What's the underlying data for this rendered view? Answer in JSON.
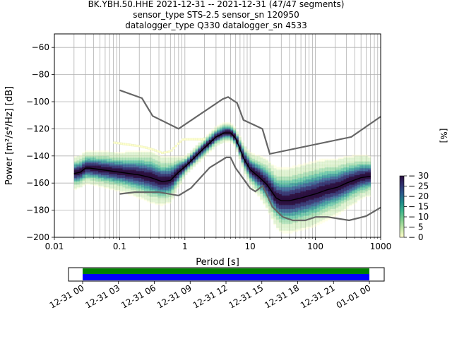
{
  "title_lines": [
    "BK.YBH.50.HHE   2021-12-31 -- 2021-12-31  (47/47 segments)",
    "sensor_type STS-2.5 sensor_sn 120950",
    "datalogger_type Q330 datalogger_sn 4533"
  ],
  "chart_data": {
    "type": "heatmap",
    "subtype": "probabilistic power spectral density",
    "x_scale": "log",
    "xlabel": "Period [s]",
    "ylabel": "Power [m²/s⁴/Hz] [dB]",
    "xlim": [
      0.01,
      1000
    ],
    "ylim": [
      -200,
      -50
    ],
    "x_ticks": [
      {
        "value": 0.01,
        "label": "0.01"
      },
      {
        "value": 0.1,
        "label": "0.1"
      },
      {
        "value": 1,
        "label": "1"
      },
      {
        "value": 10,
        "label": "10"
      },
      {
        "value": 100,
        "label": "100"
      },
      {
        "value": 1000,
        "label": "1000"
      }
    ],
    "y_ticks": [
      {
        "value": -60,
        "label": "−60"
      },
      {
        "value": -80,
        "label": "−80"
      },
      {
        "value": -100,
        "label": "−100"
      },
      {
        "value": -120,
        "label": "−120"
      },
      {
        "value": -140,
        "label": "−140"
      },
      {
        "value": -160,
        "label": "−160"
      },
      {
        "value": -180,
        "label": "−180"
      },
      {
        "value": -200,
        "label": "−200"
      }
    ],
    "grid": true,
    "noise_models": {
      "color": "#666666",
      "high": [
        [
          0.1,
          -91.5
        ],
        [
          0.22,
          -97.4
        ],
        [
          0.32,
          -110.5
        ],
        [
          0.8,
          -120
        ],
        [
          3.8,
          -98
        ],
        [
          4.6,
          -96.5
        ],
        [
          6.3,
          -101
        ],
        [
          7.9,
          -113.5
        ],
        [
          15.4,
          -120
        ],
        [
          20,
          -138.5
        ],
        [
          354.8,
          -126
        ],
        [
          1000,
          -111
        ]
      ],
      "low": [
        [
          0.1,
          -168
        ],
        [
          0.17,
          -166.7
        ],
        [
          0.4,
          -166.7
        ],
        [
          0.8,
          -169.2
        ],
        [
          1.24,
          -163.7
        ],
        [
          2.4,
          -148.6
        ],
        [
          4.3,
          -141.1
        ],
        [
          5,
          -141.1
        ],
        [
          6,
          -149
        ],
        [
          10,
          -163.8
        ],
        [
          12,
          -166.2
        ],
        [
          15.6,
          -162.1
        ],
        [
          21.9,
          -177.5
        ],
        [
          31.6,
          -185
        ],
        [
          45,
          -187.5
        ],
        [
          70,
          -187.5
        ],
        [
          101,
          -185
        ],
        [
          154,
          -185
        ],
        [
          328,
          -187.5
        ],
        [
          600,
          -184.4
        ],
        [
          1000,
          -178
        ]
      ]
    },
    "median": [
      [
        0.02,
        -153
      ],
      [
        0.025,
        -152
      ],
      [
        0.03,
        -149
      ],
      [
        0.035,
        -149
      ],
      [
        0.05,
        -150
      ],
      [
        0.1,
        -152
      ],
      [
        0.2,
        -154
      ],
      [
        0.3,
        -156
      ],
      [
        0.45,
        -159
      ],
      [
        0.6,
        -158
      ],
      [
        0.8,
        -152
      ],
      [
        1,
        -148
      ],
      [
        2,
        -134
      ],
      [
        3,
        -126
      ],
      [
        4,
        -123
      ],
      [
        5,
        -123
      ],
      [
        6,
        -127
      ],
      [
        8,
        -142
      ],
      [
        10,
        -150
      ],
      [
        14,
        -156
      ],
      [
        18,
        -161
      ],
      [
        25,
        -171
      ],
      [
        30,
        -173
      ],
      [
        40,
        -173
      ],
      [
        60,
        -171
      ],
      [
        100,
        -168
      ],
      [
        150,
        -165
      ],
      [
        220,
        -163
      ],
      [
        300,
        -160
      ],
      [
        500,
        -156
      ],
      [
        700,
        -155
      ]
    ],
    "spread": [
      [
        0.03,
        5
      ],
      [
        0.1,
        6
      ],
      [
        0.3,
        8
      ],
      [
        0.6,
        7
      ],
      [
        1,
        3
      ],
      [
        3,
        3
      ],
      [
        6,
        3
      ],
      [
        10,
        5
      ],
      [
        20,
        8
      ],
      [
        30,
        10
      ],
      [
        100,
        10
      ],
      [
        300,
        8
      ],
      [
        700,
        6
      ]
    ],
    "colorbar": {
      "label": "[%]",
      "range": [
        0,
        30
      ],
      "ticks": [
        0,
        5,
        10,
        15,
        20,
        25,
        30
      ],
      "colormap": [
        "#ffffcc",
        "#c2e6a8",
        "#7fcd8e",
        "#3eb58c",
        "#1f8a8a",
        "#2c5a8c",
        "#30306e",
        "#2b0f3f"
      ]
    }
  },
  "timeline": {
    "tick_labels": [
      "12-31 00",
      "12-31 03",
      "12-31 06",
      "12-31 09",
      "12-31 12",
      "12-31 15",
      "12-31 18",
      "12-31 21",
      "01-01 00"
    ],
    "data_color": "#0000ff",
    "segment_color": "#008000",
    "coverage": [
      0,
      24
    ],
    "hours_total": 24
  }
}
